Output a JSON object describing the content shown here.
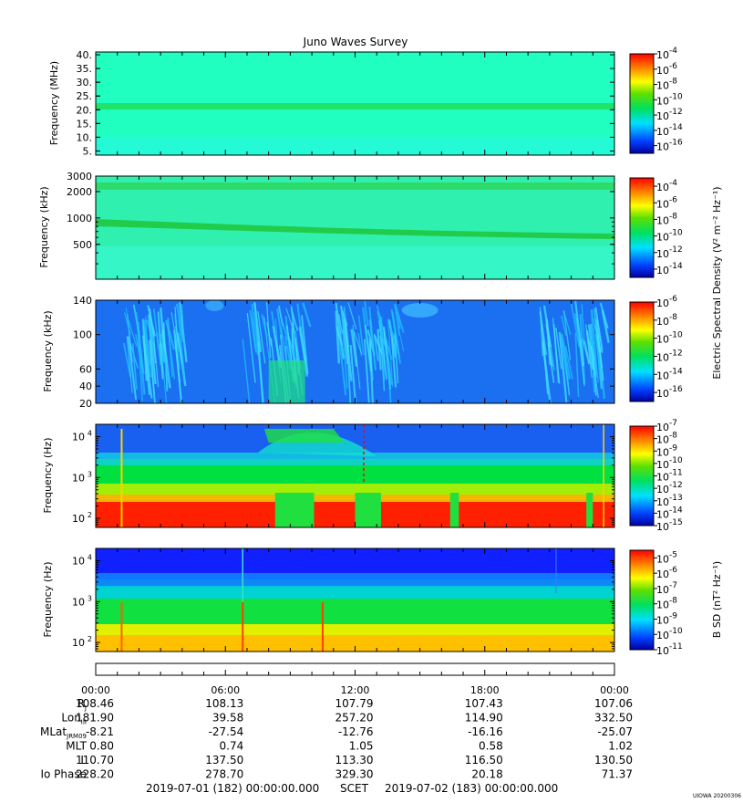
{
  "title": "Juno Waves Survey",
  "footer": {
    "start": "2019-07-01 (182) 00:00:00.000",
    "scet": "SCET",
    "end": "2019-07-02 (183) 00:00:00.000",
    "stamp": "UIOWA 20200306"
  },
  "time_axis": {
    "ticks": [
      "00:00",
      "06:00",
      "12:00",
      "18:00",
      "00:00"
    ]
  },
  "ephemeris": {
    "rows": [
      {
        "label": "R",
        "sub": "J",
        "values": [
          "108.46",
          "108.13",
          "107.79",
          "107.43",
          "107.06"
        ]
      },
      {
        "label": "Lon",
        "sub": "III",
        "values": [
          "181.90",
          "39.58",
          "257.20",
          "114.90",
          "332.50"
        ]
      },
      {
        "label": "MLat",
        "sub": "JRM09",
        "values": [
          "-8.21",
          "-27.54",
          "-12.76",
          "-16.16",
          "-25.07"
        ]
      },
      {
        "label": "MLT",
        "sub": "",
        "values": [
          "0.80",
          "0.74",
          "1.05",
          "0.58",
          "1.02"
        ]
      },
      {
        "label": "L",
        "sub": "",
        "values": [
          "110.70",
          "137.50",
          "113.30",
          "116.50",
          "130.50"
        ]
      },
      {
        "label": "Io Phase",
        "sub": "",
        "values": [
          "228.20",
          "278.70",
          "329.30",
          "20.18",
          "71.37"
        ]
      }
    ]
  },
  "colorbar_side_labels": {
    "electric": "Electric Spectral Density (V² m⁻² Hz⁻¹)",
    "magnetic": "B SD (nT² Hz⁻¹)"
  },
  "chart_data": [
    {
      "type": "heatmap",
      "ylabel": "Frequency (MHz)",
      "yscale": "linear",
      "ylim": [
        3.5,
        41
      ],
      "yticks": [
        "40.",
        "35.",
        "30.",
        "25.",
        "20.",
        "15.",
        "10.",
        "5."
      ],
      "ytick_values": [
        40,
        35,
        30,
        25,
        20,
        15,
        10,
        5
      ],
      "colorbar_ticks": [
        "-4",
        "-6",
        "-8",
        "-10",
        "-12",
        "-14",
        "-16"
      ],
      "colorbar_range": [
        -17,
        -4
      ],
      "features": "uniform background with a narrow band near 21 MHz"
    },
    {
      "type": "heatmap",
      "ylabel": "Frequency (kHz)",
      "yscale": "log",
      "ylim": [
        200,
        3000
      ],
      "yticks": [
        "3000",
        "2000",
        "1000",
        "500"
      ],
      "ytick_values": [
        3000,
        2000,
        1000,
        500
      ],
      "colorbar_ticks": [
        "-4",
        "-6",
        "-8",
        "-10",
        "-12",
        "-14"
      ],
      "colorbar_range": [
        -15,
        -3
      ],
      "features": "band near 2200 kHz; band drifting from ~700 kHz to ~500 kHz"
    },
    {
      "type": "heatmap",
      "ylabel": "Frequency (kHz)",
      "yscale": "linear",
      "ylim": [
        20,
        140
      ],
      "yticks": [
        "140",
        "100",
        "60",
        "40",
        "20"
      ],
      "ytick_values": [
        140,
        100,
        60,
        40,
        20
      ],
      "colorbar_ticks": [
        "-6",
        "-8",
        "-10",
        "-12",
        "-14",
        "-16"
      ],
      "colorbar_range": [
        -17,
        -6
      ],
      "features": "blue background with bursts of emission around 01-04, 07-09, 11-14 and 21-23 h"
    },
    {
      "type": "heatmap",
      "ylabel": "Frequency (Hz)",
      "yscale": "log",
      "ylim": [
        60,
        20000
      ],
      "yticks": [
        "10",
        "10",
        "10"
      ],
      "ytick_exponents": [
        "4",
        "3",
        "2"
      ],
      "ytick_values": [
        10000,
        1000,
        100
      ],
      "colorbar_ticks": [
        "-7",
        "-8",
        "-9",
        "-10",
        "-11",
        "-12",
        "-13",
        "-14",
        "-15"
      ],
      "colorbar_range": [
        -15,
        -7
      ],
      "features": "intense emission below ~250 Hz, gaps near 08:30-10:00 and 12:00-13:00"
    },
    {
      "type": "heatmap",
      "ylabel": "Frequency (Hz)",
      "yscale": "log",
      "ylim": [
        60,
        20000
      ],
      "yticks": [
        "10",
        "10",
        "10"
      ],
      "ytick_exponents": [
        "4",
        "3",
        "2"
      ],
      "ytick_values": [
        10000,
        1000,
        100
      ],
      "colorbar_ticks": [
        "-5",
        "-6",
        "-7",
        "-8",
        "-9",
        "-10",
        "-11"
      ],
      "colorbar_range": [
        -11,
        -4.5
      ],
      "features": "blue at high frequency grading to yellow/orange below ~200 Hz"
    }
  ]
}
